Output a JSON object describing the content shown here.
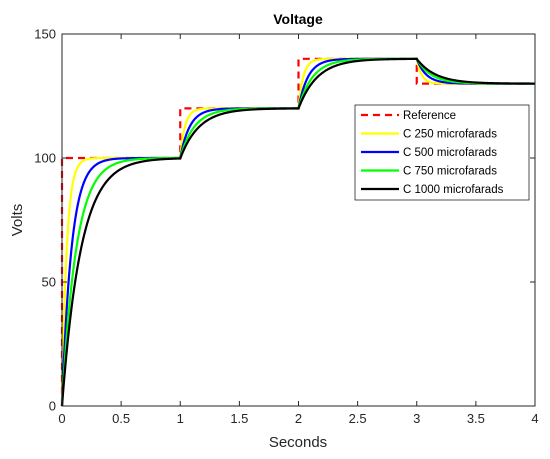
{
  "chart_data": {
    "type": "line",
    "title": "Voltage",
    "xlabel": "Seconds",
    "ylabel": "Volts",
    "xlim": [
      0,
      4
    ],
    "ylim": [
      0,
      150
    ],
    "xticks": [
      0,
      0.5,
      1,
      1.5,
      2,
      2.5,
      3,
      3.5,
      4
    ],
    "xtick_labels": [
      "0",
      "0.5",
      "1",
      "1.5",
      "2",
      "2.5",
      "3",
      "3.5",
      "4"
    ],
    "yticks": [
      0,
      50,
      100,
      150
    ],
    "ytick_labels": [
      "0",
      "50",
      "100",
      "150"
    ],
    "grid": false,
    "legend_position": "right",
    "reference": {
      "name": "Reference",
      "color": "#ff0000",
      "style": "dashed",
      "steps": [
        {
          "t": 0,
          "v": 100
        },
        {
          "t": 1,
          "v": 120
        },
        {
          "t": 2,
          "v": 140
        },
        {
          "t": 3,
          "v": 130
        }
      ]
    },
    "series": [
      {
        "name": "C 250 microfarads",
        "color": "#ffff00",
        "time_constant": 0.04
      },
      {
        "name": "C 500 microfarads",
        "color": "#0000ff",
        "time_constant": 0.08
      },
      {
        "name": "C 750 microfarads",
        "color": "#00ff00",
        "time_constant": 0.12
      },
      {
        "name": "C 1000 microfarads",
        "color": "#000000",
        "time_constant": 0.16
      }
    ]
  }
}
